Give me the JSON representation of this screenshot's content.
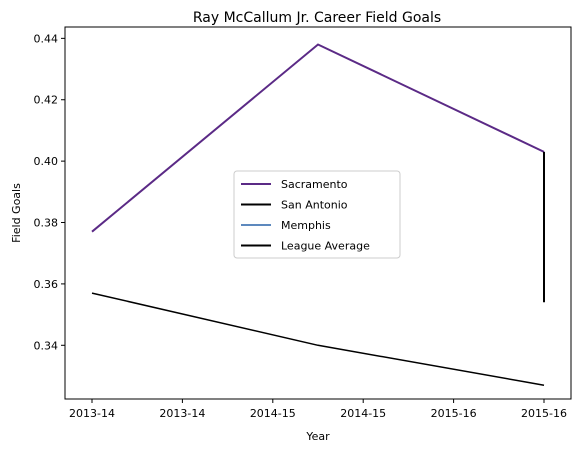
{
  "chart_data": {
    "type": "line",
    "title": "Ray McCallum Jr. Career Field Goals",
    "xlabel": "Year",
    "ylabel": "Field Goals",
    "x_tick_labels": [
      "2013-14",
      "2013-14",
      "2014-15",
      "2014-15",
      "2015-16",
      "2015-16"
    ],
    "y_ticks": [
      0.34,
      0.36,
      0.38,
      0.4,
      0.42,
      0.44
    ],
    "y_tick_labels": [
      "0.34",
      "0.36",
      "0.38",
      "0.40",
      "0.42",
      "0.44"
    ],
    "ylim": [
      0.3225,
      0.4437
    ],
    "x_positions": [
      "2013-14",
      "2014-15",
      "2015-16"
    ],
    "series": [
      {
        "name": "Sacramento",
        "color": "#5b2a86",
        "points": [
          [
            "2013-14",
            0.377
          ],
          [
            "2014-15",
            0.438
          ],
          [
            "2015-16",
            0.403
          ]
        ]
      },
      {
        "name": "San Antonio",
        "color": "#000000",
        "points": [
          [
            "2015-16",
            0.403
          ],
          [
            "2015-16",
            0.354
          ]
        ]
      },
      {
        "name": "Memphis",
        "color": "#5d89be",
        "points": []
      },
      {
        "name": "League Average",
        "color": "#000000",
        "points": [
          [
            "2013-14",
            0.357
          ],
          [
            "2014-15",
            0.34
          ],
          [
            "2015-16",
            0.327
          ]
        ]
      }
    ],
    "legend_position": "center",
    "grid": false
  }
}
